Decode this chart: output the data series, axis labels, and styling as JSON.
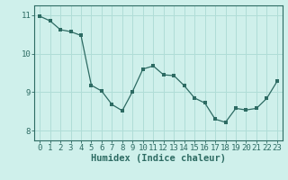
{
  "x": [
    0,
    1,
    2,
    3,
    4,
    5,
    6,
    7,
    8,
    9,
    10,
    11,
    12,
    13,
    14,
    15,
    16,
    17,
    18,
    19,
    20,
    21,
    22,
    23
  ],
  "y": [
    10.97,
    10.85,
    10.62,
    10.57,
    10.47,
    9.18,
    9.03,
    8.68,
    8.52,
    9.02,
    9.6,
    9.68,
    9.45,
    9.43,
    9.17,
    8.85,
    8.72,
    8.3,
    8.22,
    8.58,
    8.54,
    8.58,
    8.84,
    9.28
  ],
  "line_color": "#2d6b63",
  "marker": "s",
  "marker_size": 2.5,
  "xlabel": "Humidex (Indice chaleur)",
  "xlim": [
    -0.5,
    23.5
  ],
  "ylim": [
    7.75,
    11.25
  ],
  "yticks": [
    8,
    9,
    10,
    11
  ],
  "xticks": [
    0,
    1,
    2,
    3,
    4,
    5,
    6,
    7,
    8,
    9,
    10,
    11,
    12,
    13,
    14,
    15,
    16,
    17,
    18,
    19,
    20,
    21,
    22,
    23
  ],
  "bg_color": "#cff0eb",
  "grid_color": "#b0ddd7",
  "axis_color": "#2d6b63",
  "tick_label_fontsize": 6.5,
  "xlabel_fontsize": 7.5
}
